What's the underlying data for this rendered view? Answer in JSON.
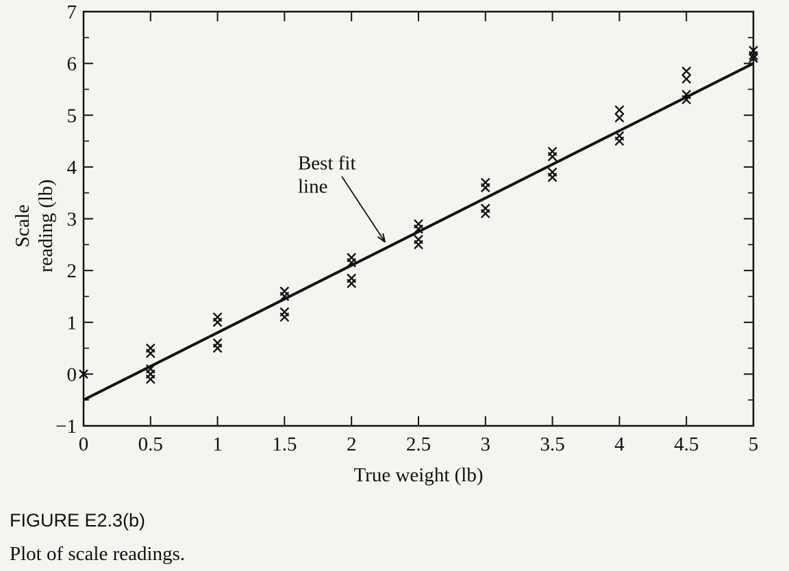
{
  "chart_data": {
    "type": "scatter",
    "xlabel": "True weight (lb)",
    "ylabel": [
      "Scale",
      "reading (lb)"
    ],
    "xlim": [
      0,
      5
    ],
    "ylim": [
      -1,
      7
    ],
    "x_ticks": [
      0,
      0.5,
      1,
      1.5,
      2,
      2.5,
      3,
      3.5,
      4,
      4.5,
      5
    ],
    "x_tick_labels": [
      "0",
      "0.5",
      "1",
      "1.5",
      "2",
      "2.5",
      "3",
      "3.5",
      "4",
      "4.5",
      "5"
    ],
    "y_ticks": [
      -1,
      0,
      1,
      2,
      3,
      4,
      5,
      6,
      7
    ],
    "y_tick_labels": [
      "−1",
      "0",
      "1",
      "2",
      "3",
      "4",
      "5",
      "6",
      "7"
    ],
    "grid": false,
    "series": [
      {
        "type": "scatter",
        "marker": "x",
        "points": [
          [
            0,
            0.0
          ],
          [
            0.5,
            0.5
          ],
          [
            0.5,
            0.4
          ],
          [
            0.5,
            0.1
          ],
          [
            0.5,
            0.0
          ],
          [
            0.5,
            -0.1
          ],
          [
            1,
            1.1
          ],
          [
            1,
            1.0
          ],
          [
            1,
            0.6
          ],
          [
            1,
            0.5
          ],
          [
            1.5,
            1.6
          ],
          [
            1.5,
            1.5
          ],
          [
            1.5,
            1.2
          ],
          [
            1.5,
            1.1
          ],
          [
            2,
            2.25
          ],
          [
            2,
            2.15
          ],
          [
            2,
            1.85
          ],
          [
            2,
            1.75
          ],
          [
            2.5,
            2.9
          ],
          [
            2.5,
            2.8
          ],
          [
            2.5,
            2.6
          ],
          [
            2.5,
            2.5
          ],
          [
            3,
            3.7
          ],
          [
            3,
            3.6
          ],
          [
            3,
            3.2
          ],
          [
            3,
            3.1
          ],
          [
            3.5,
            4.3
          ],
          [
            3.5,
            4.2
          ],
          [
            3.5,
            3.9
          ],
          [
            3.5,
            3.8
          ],
          [
            4,
            5.1
          ],
          [
            4,
            4.95
          ],
          [
            4,
            4.6
          ],
          [
            4,
            4.5
          ],
          [
            4.5,
            5.85
          ],
          [
            4.5,
            5.7
          ],
          [
            4.5,
            5.4
          ],
          [
            4.5,
            5.3
          ],
          [
            5,
            6.25
          ],
          [
            5,
            6.15
          ],
          [
            5,
            6.1
          ]
        ]
      },
      {
        "type": "line",
        "x": [
          0,
          5
        ],
        "y": [
          -0.5,
          6.0
        ]
      }
    ],
    "annotations": [
      {
        "text": [
          "Best fit",
          "line"
        ],
        "points_to": [
          2.25,
          2.55
        ],
        "text_at": [
          1.6,
          3.95
        ]
      }
    ]
  },
  "caption": {
    "label": "FIGURE E2.3(b)",
    "text": "Plot of scale readings."
  }
}
